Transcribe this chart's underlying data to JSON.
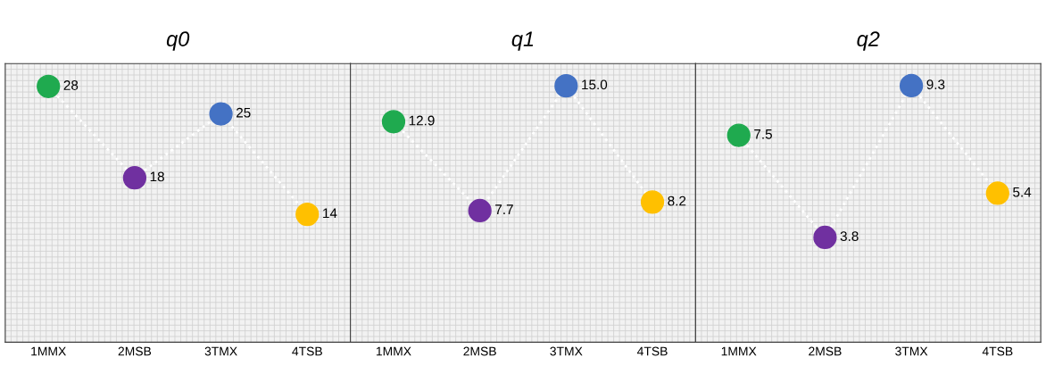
{
  "chart_data": [
    {
      "type": "line",
      "title": "q0",
      "categories": [
        "1MMX",
        "2MSB",
        "3TMX",
        "4TSB"
      ],
      "series": [
        {
          "color": "#ffffff",
          "colors": [
            "#1faa4f",
            "#7030a0",
            "#4472c4",
            "#ffc000"
          ],
          "values": [
            28,
            18,
            25,
            14
          ],
          "value_labels": [
            "28",
            "18",
            "25",
            "14"
          ]
        }
      ],
      "ylim": [
        0,
        30.5
      ],
      "grid": true,
      "marker": "circle",
      "line_style": "dotted",
      "tick_labels": "x"
    },
    {
      "type": "line",
      "title": "q1",
      "categories": [
        "1MMX",
        "2MSB",
        "3TMX",
        "4TSB"
      ],
      "series": [
        {
          "color": "#ffffff",
          "colors": [
            "#1faa4f",
            "#7030a0",
            "#4472c4",
            "#ffc000"
          ],
          "values": [
            12.9,
            7.7,
            15.0,
            8.2
          ],
          "value_labels": [
            "12.9",
            "7.7",
            "15.0",
            "8.2"
          ]
        }
      ],
      "ylim": [
        0,
        16.3
      ],
      "grid": true,
      "marker": "circle",
      "line_style": "dotted",
      "tick_labels": "x"
    },
    {
      "type": "line",
      "title": "q2",
      "categories": [
        "1MMX",
        "2MSB",
        "3TMX",
        "4TSB"
      ],
      "series": [
        {
          "color": "#ffffff",
          "colors": [
            "#1faa4f",
            "#7030a0",
            "#4472c4",
            "#ffc000"
          ],
          "values": [
            7.5,
            3.8,
            9.3,
            5.4
          ],
          "value_labels": [
            "7.5",
            "3.8",
            "9.3",
            "5.4"
          ]
        }
      ],
      "ylim": [
        0,
        10.1
      ],
      "grid": true,
      "marker": "circle",
      "line_style": "dotted",
      "tick_labels": "x"
    }
  ]
}
